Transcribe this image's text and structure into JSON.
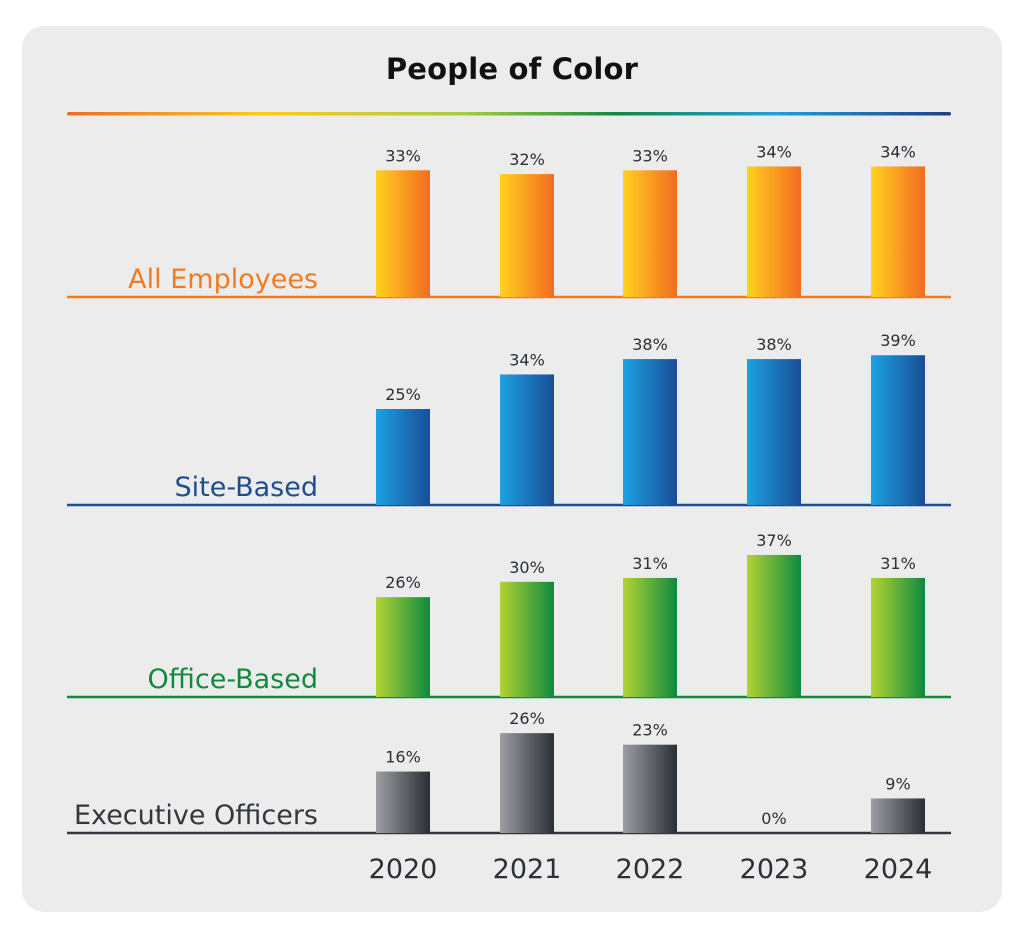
{
  "chart_data": {
    "type": "bar",
    "title": "People of Color",
    "categories": [
      "2020",
      "2021",
      "2022",
      "2023",
      "2024"
    ],
    "ylim": [
      0,
      40
    ],
    "grid": false,
    "panels": [
      {
        "name": "All Employees",
        "values": [
          33,
          32,
          33,
          34,
          34
        ],
        "colors": {
          "from": "#FFD21F",
          "to": "#F26B21",
          "label": "#F47B20",
          "line": "#F47B20"
        }
      },
      {
        "name": "Site-Based",
        "values": [
          25,
          34,
          38,
          38,
          39
        ],
        "colors": {
          "from": "#1CA1E2",
          "to": "#1A4E96",
          "label": "#1F4E8F",
          "line": "#1F4E8F"
        }
      },
      {
        "name": "Office-Based",
        "values": [
          26,
          30,
          31,
          37,
          31
        ],
        "colors": {
          "from": "#B4D334",
          "to": "#0C8A3E",
          "label": "#0F8A3F",
          "line": "#0F8A3F"
        }
      },
      {
        "name": "Executive Officers",
        "values": [
          16,
          26,
          23,
          0,
          9
        ],
        "colors": {
          "from": "#9C9EA2",
          "to": "#2A2F36",
          "label": "#333840",
          "line": "#333840"
        }
      }
    ],
    "value_suffix": "%"
  }
}
